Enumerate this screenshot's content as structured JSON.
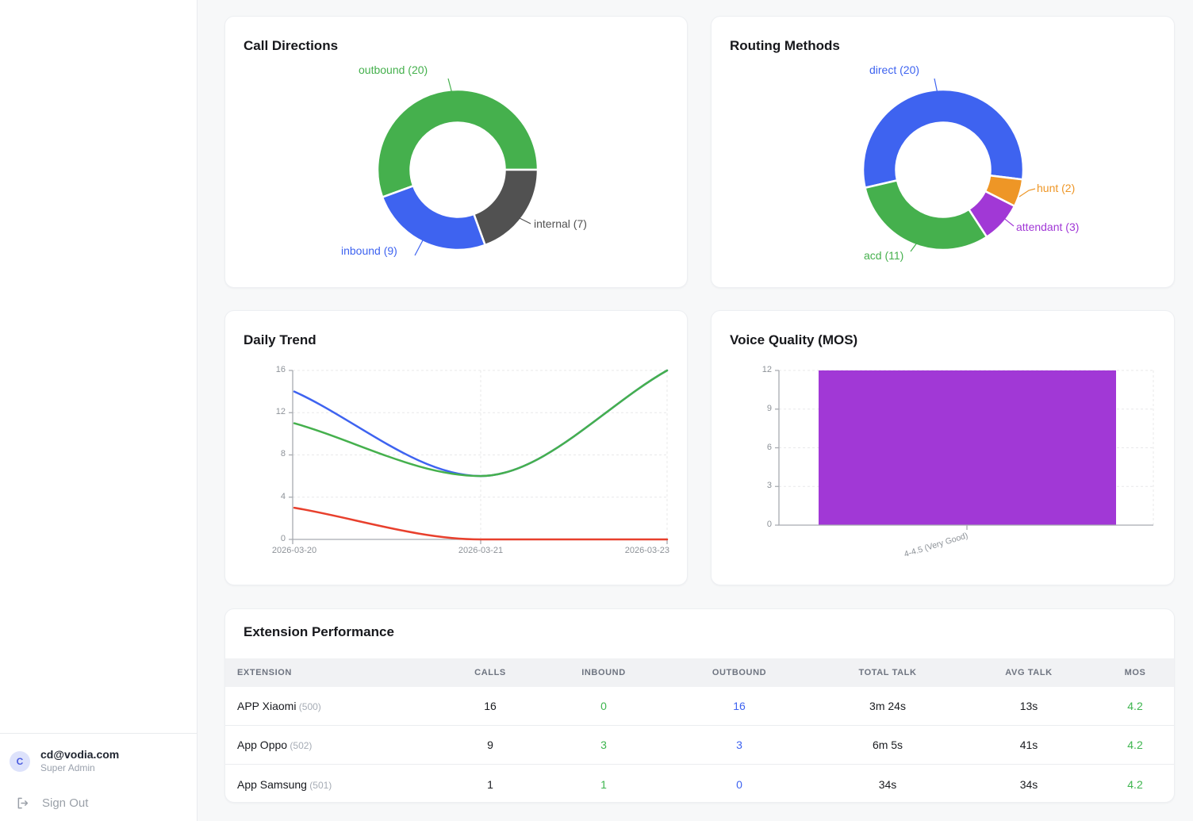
{
  "sidebar": {
    "user": {
      "initial": "C",
      "email": "cd@vodia.com",
      "role": "Super Admin"
    },
    "sign_out_label": "Sign Out"
  },
  "cards": {
    "call_directions_title": "Call Directions",
    "routing_methods_title": "Routing Methods",
    "daily_trend_title": "Daily Trend",
    "voice_quality_title": "Voice Quality (MOS)"
  },
  "colors": {
    "green": "#45b04d",
    "blue": "#3e63f0",
    "red": "#e8402d",
    "orange": "#ee9626",
    "purple": "#a138d6",
    "dark_gray": "#515151"
  },
  "chart_data": [
    {
      "id": "call_directions",
      "type": "pie",
      "title": "Call Directions",
      "donut": true,
      "start_angle": 250,
      "slices": [
        {
          "label": "outbound",
          "value": 20,
          "color": "#45b04d",
          "label_display": "outbound (20)"
        },
        {
          "label": "internal",
          "value": 7,
          "color": "#515151",
          "label_display": "internal (7)"
        },
        {
          "label": "inbound",
          "value": 9,
          "color": "#3e63f0",
          "label_display": "inbound (9)"
        }
      ]
    },
    {
      "id": "routing_methods",
      "type": "pie",
      "title": "Routing Methods",
      "donut": true,
      "start_angle": 257,
      "slices": [
        {
          "label": "direct",
          "value": 20,
          "color": "#3e63f0",
          "label_display": "direct (20)"
        },
        {
          "label": "hunt",
          "value": 2,
          "color": "#ee9626",
          "label_display": "hunt (2)"
        },
        {
          "label": "attendant",
          "value": 3,
          "color": "#a138d6",
          "label_display": "attendant (3)"
        },
        {
          "label": "acd",
          "value": 11,
          "color": "#45b04d",
          "label_display": "acd (11)"
        }
      ]
    },
    {
      "id": "daily_trend",
      "type": "line",
      "title": "Daily Trend",
      "x": [
        "2026-03-20",
        "2026-03-21",
        "2026-03-23"
      ],
      "series": [
        {
          "name": "blue-series",
          "color": "#3e63f0",
          "values": [
            14,
            6,
            16
          ]
        },
        {
          "name": "green-series",
          "color": "#45b04d",
          "values": [
            11,
            6,
            16
          ]
        },
        {
          "name": "red-series",
          "color": "#e8402d",
          "values": [
            3,
            0,
            0
          ]
        }
      ],
      "ylim": [
        0,
        16
      ],
      "yticks": [
        0,
        4,
        8,
        12,
        16
      ],
      "grid": true,
      "legend": "none"
    },
    {
      "id": "voice_quality",
      "type": "bar",
      "title": "Voice Quality (MOS)",
      "categories": [
        "4-4.5 (Very Good)"
      ],
      "values": [
        12
      ],
      "color": "#a138d6",
      "ylim": [
        0,
        12
      ],
      "yticks": [
        0,
        3,
        6,
        9,
        12
      ],
      "grid": true
    }
  ],
  "table": {
    "title": "Extension Performance",
    "columns": [
      "EXTENSION",
      "CALLS",
      "INBOUND",
      "OUTBOUND",
      "TOTAL TALK",
      "AVG TALK",
      "MOS"
    ],
    "rows": [
      {
        "extension": "APP Xiaomi",
        "ext_number": "(500)",
        "calls": "16",
        "inbound": "0",
        "outbound": "16",
        "total_talk": "3m 24s",
        "avg_talk": "13s",
        "mos": "4.2"
      },
      {
        "extension": "App Oppo",
        "ext_number": "(502)",
        "calls": "9",
        "inbound": "3",
        "outbound": "3",
        "total_talk": "6m 5s",
        "avg_talk": "41s",
        "mos": "4.2"
      },
      {
        "extension": "App Samsung",
        "ext_number": "(501)",
        "calls": "1",
        "inbound": "1",
        "outbound": "0",
        "total_talk": "34s",
        "avg_talk": "34s",
        "mos": "4.2"
      }
    ]
  }
}
